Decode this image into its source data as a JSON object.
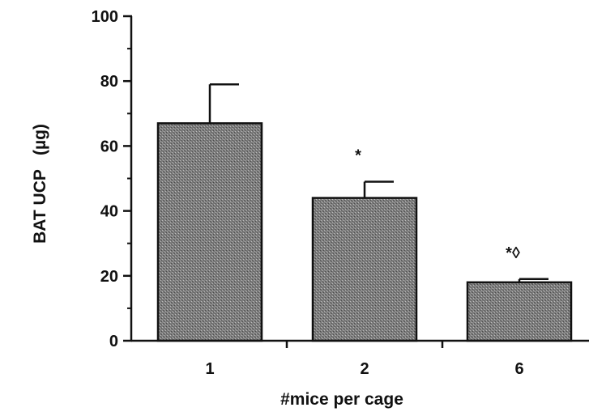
{
  "chart_data": {
    "type": "bar",
    "categories": [
      "1",
      "2",
      "6"
    ],
    "values": [
      67,
      44,
      18
    ],
    "error_bars": [
      12,
      5,
      1
    ],
    "annotations": [
      "",
      "*",
      "*◊"
    ],
    "xlabel": "#mice per cage",
    "ylabel": "BAT UCP   (µg)",
    "ylim": [
      0,
      100
    ],
    "yticks": [
      "0",
      "20",
      "40",
      "60",
      "80",
      "100"
    ],
    "grid": false,
    "colors": {
      "bar_fill": "#7d7d7d",
      "bar_stroke": "#111111",
      "axis": "#111111"
    }
  }
}
